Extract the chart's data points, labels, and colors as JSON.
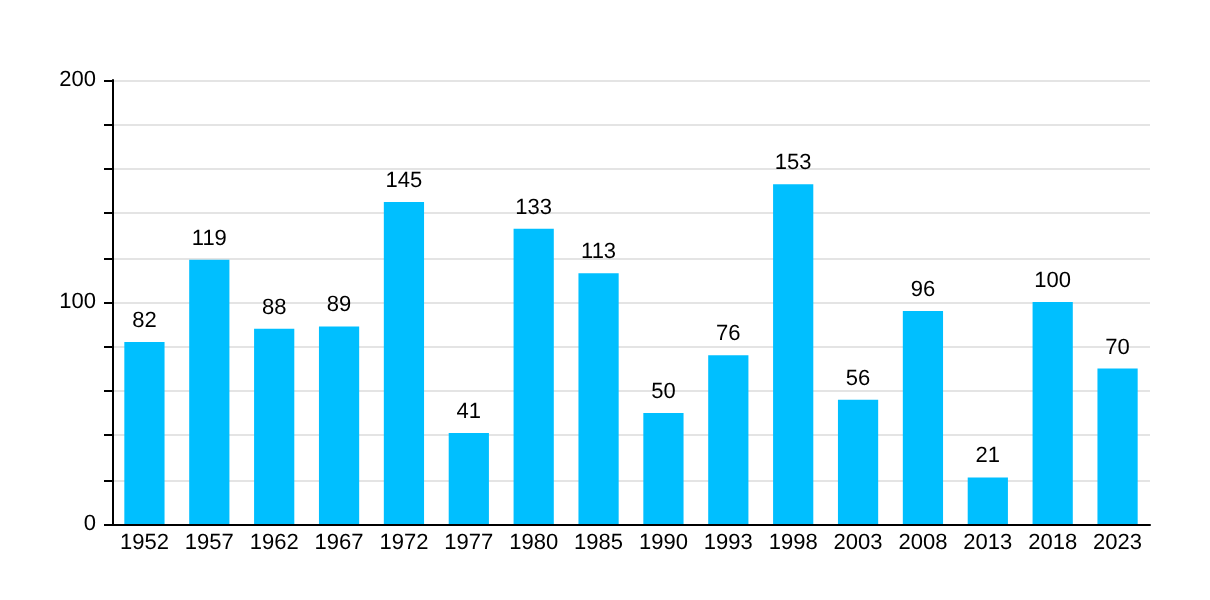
{
  "chart_data": {
    "type": "bar",
    "categories": [
      "1952",
      "1957",
      "1962",
      "1967",
      "1972",
      "1977",
      "1980",
      "1985",
      "1990",
      "1993",
      "1998",
      "2003",
      "2008",
      "2013",
      "2018",
      "2023"
    ],
    "values": [
      82,
      119,
      88,
      89,
      145,
      41,
      133,
      113,
      50,
      76,
      153,
      56,
      96,
      21,
      100,
      70
    ],
    "color": "#00bfff",
    "ylim": [
      0,
      200
    ],
    "yticks": [
      0,
      {
        "value": 20,
        "label": null
      },
      {
        "value": 40,
        "label": null
      },
      {
        "value": 60,
        "label": null
      },
      {
        "value": 80,
        "label": null
      },
      100,
      {
        "value": 120,
        "label": null
      },
      {
        "value": 140,
        "label": null
      },
      {
        "value": 160,
        "label": null
      },
      {
        "value": 180,
        "label": null
      },
      200
    ],
    "grid": "y",
    "data_labels": true
  }
}
